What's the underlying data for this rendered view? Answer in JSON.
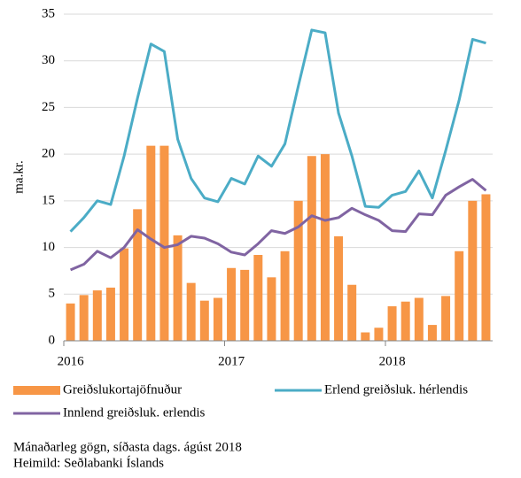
{
  "chart_data": {
    "type": "bar",
    "y_label": "ma.kr.",
    "categories": [
      "2016",
      null,
      null,
      null,
      null,
      null,
      null,
      null,
      null,
      null,
      null,
      null,
      "2017",
      null,
      null,
      null,
      null,
      null,
      null,
      null,
      null,
      null,
      null,
      null,
      "2018",
      null,
      null,
      null,
      null,
      null,
      null,
      null
    ],
    "series": [
      {
        "name": "Greiðslukortajöfnuður",
        "type": "bar",
        "color": "#f79646",
        "values": [
          4.0,
          4.9,
          5.4,
          5.7,
          9.9,
          14.1,
          20.9,
          20.9,
          11.3,
          6.2,
          4.3,
          4.6,
          7.8,
          7.6,
          9.2,
          6.8,
          9.6,
          15.0,
          19.8,
          20.0,
          11.2,
          6.0,
          0.9,
          1.4,
          3.7,
          4.2,
          4.6,
          1.7,
          4.8,
          9.6,
          15.0,
          15.7
        ]
      },
      {
        "name": "Erlend greiðsluk. hérlendis",
        "type": "line",
        "color": "#4bacc6",
        "values": [
          11.7,
          13.2,
          15.0,
          14.6,
          19.8,
          26.0,
          31.8,
          31.0,
          21.6,
          17.4,
          15.3,
          14.9,
          17.4,
          16.8,
          19.8,
          18.7,
          21.1,
          27.3,
          33.3,
          33.0,
          24.4,
          19.8,
          14.4,
          14.3,
          15.6,
          16.0,
          18.2,
          15.3,
          20.4,
          25.8,
          32.3,
          31.9
        ]
      },
      {
        "name": "Innlend greiðsluk. erlendis",
        "type": "line",
        "color": "#8064a2",
        "values": [
          7.6,
          8.2,
          9.6,
          8.9,
          10.0,
          11.9,
          10.9,
          10.0,
          10.3,
          11.2,
          11.0,
          10.4,
          9.5,
          9.2,
          10.4,
          11.8,
          11.5,
          12.2,
          13.4,
          12.9,
          13.2,
          14.2,
          13.5,
          12.9,
          11.8,
          11.7,
          13.6,
          13.5,
          15.6,
          16.5,
          17.3,
          16.1
        ]
      }
    ],
    "ylim": [
      0,
      35
    ],
    "yticks": [
      0,
      5,
      10,
      15,
      20,
      25,
      30,
      35
    ],
    "grid": true,
    "notes": [
      "Mánaðarleg gögn, síðasta dags. ágúst 2018",
      "Heimild: Seðlabanki Íslands"
    ]
  }
}
